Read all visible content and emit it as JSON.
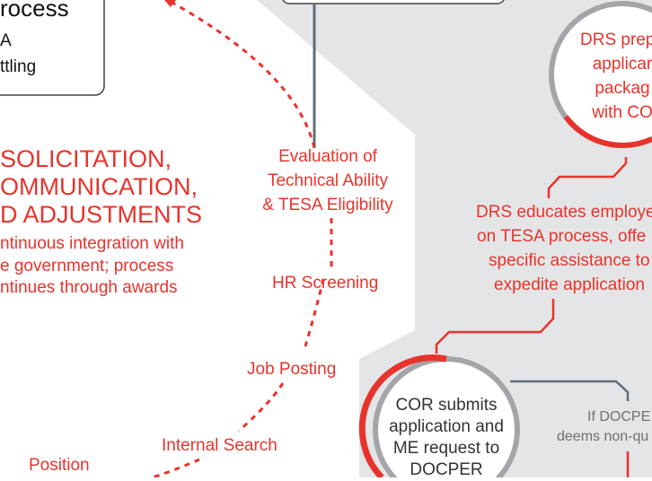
{
  "process_box": {
    "title": "rocess",
    "line1": "A",
    "line2": "ttling"
  },
  "solicitation": {
    "heading_lines": [
      "SOLICITATION,",
      "OMMUNICATION,",
      "D ADJUSTMENTS"
    ],
    "sub_lines": [
      "ntinuous integration with",
      "e government; process",
      "ntinues through awards"
    ]
  },
  "steps": {
    "evaluation": [
      "Evaluation of",
      "Technical Ability",
      "& TESA Eligibility"
    ],
    "hr_screening": "HR Screening",
    "job_posting": "Job Posting",
    "internal_search": "Internal Search",
    "position": "Position"
  },
  "drs_prepares": [
    "DRS prepa",
    "applicar",
    "packag",
    "with CO"
  ],
  "drs_educates": [
    "DRS educates employe",
    "on TESA process, offe",
    "specific assistance to",
    "expedite application"
  ],
  "cor_submits": [
    "COR submits",
    "application and",
    "ME request to",
    "DOCPER"
  ],
  "docper": [
    "If DOCPE",
    "deems non-qu"
  ],
  "colors": {
    "accent": "#e8332d",
    "panel": "#e4e5e6",
    "ring": "#a3a5a8",
    "line": "#5f6d7a"
  }
}
